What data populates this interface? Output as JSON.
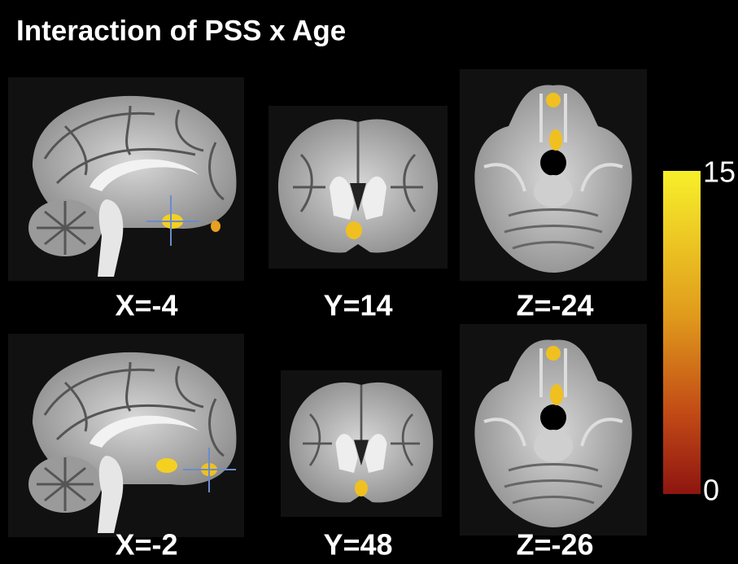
{
  "title": "Interaction of PSS x Age",
  "panels": [
    {
      "label": "X=-4"
    },
    {
      "label": "Y=14"
    },
    {
      "label": "Z=-24"
    },
    {
      "label": "X=-2"
    },
    {
      "label": "Y=48"
    },
    {
      "label": "Z=-26"
    }
  ],
  "colorbar": {
    "max": 15,
    "min": 0
  }
}
